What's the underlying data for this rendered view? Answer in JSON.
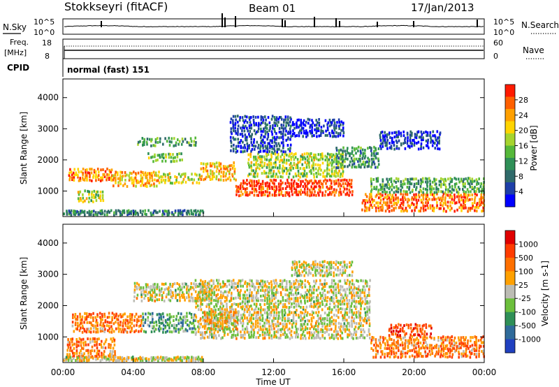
{
  "header": {
    "station": "Stokkseyri (fitACF)",
    "beam": "Beam 01",
    "date": "17/Jan/2013"
  },
  "noise_panel": {
    "left_label": "N.Sky",
    "right_label": "N.Search",
    "left_ticks": [
      "10^5",
      "10^0"
    ],
    "right_ticks": [
      "10^5",
      "10^0"
    ]
  },
  "freq_panel": {
    "left_label_1": "Freq.",
    "left_label_2": "[MHz]",
    "right_label": "Nave",
    "left_ticks": [
      "18",
      "8"
    ],
    "right_ticks": [
      "60",
      "0"
    ]
  },
  "cpid": {
    "label": "CPID",
    "value": "normal (fast) 151"
  },
  "chart_data": [
    {
      "type": "heatmap",
      "title": "",
      "xlabel": "",
      "ylabel": "Slant Range [km]",
      "xlim": [
        "00:00",
        "24:00"
      ],
      "ylim": [
        180,
        4600
      ],
      "yticks": [
        1000,
        2000,
        3000,
        4000
      ],
      "grid": false,
      "colorbar": {
        "label": "Power [dB]",
        "ticks": [
          "28",
          "24",
          "20",
          "16",
          "12",
          "8",
          "4"
        ],
        "range": [
          0,
          32
        ],
        "colors": [
          "#0000ff",
          "#1e3fa8",
          "#2f6a6a",
          "#2f8f57",
          "#55b83a",
          "#a6d42e",
          "#ffd400",
          "#ffa000",
          "#ff6000",
          "#ff1a00"
        ]
      },
      "regions": [
        {
          "t": [
            0.3,
            2.8
          ],
          "r": [
            1280,
            1700
          ],
          "level": 0.78
        },
        {
          "t": [
            2.8,
            5.5
          ],
          "r": [
            1100,
            1600
          ],
          "level": 0.72
        },
        {
          "t": [
            5.5,
            7.8
          ],
          "r": [
            1200,
            1550
          ],
          "level": 0.62
        },
        {
          "t": [
            0.8,
            2.3
          ],
          "r": [
            600,
            1000
          ],
          "level": 0.55
        },
        {
          "t": [
            4.2,
            7.6
          ],
          "r": [
            2400,
            2700
          ],
          "level": 0.4
        },
        {
          "t": [
            4.8,
            6.8
          ],
          "r": [
            1900,
            2200
          ],
          "level": 0.45
        },
        {
          "t": [
            7.8,
            9.8
          ],
          "r": [
            1300,
            1900
          ],
          "level": 0.72
        },
        {
          "t": [
            9.8,
            16.5
          ],
          "r": [
            800,
            1350
          ],
          "level": 0.93
        },
        {
          "t": [
            10.5,
            16.0
          ],
          "r": [
            1400,
            2200
          ],
          "level": 0.55
        },
        {
          "t": [
            15.5,
            18.0
          ],
          "r": [
            1700,
            2400
          ],
          "level": 0.35
        },
        {
          "t": [
            17.0,
            24.0
          ],
          "r": [
            300,
            900
          ],
          "level": 0.82
        },
        {
          "t": [
            17.5,
            24.0
          ],
          "r": [
            900,
            1400
          ],
          "level": 0.4
        },
        {
          "t": [
            0.0,
            8.0
          ],
          "r": [
            190,
            350
          ],
          "level": 0.3
        },
        {
          "t": [
            18.0,
            21.5
          ],
          "r": [
            2300,
            2900
          ],
          "level": 0.12
        },
        {
          "t": [
            9.5,
            13.0
          ],
          "r": [
            2200,
            3400
          ],
          "level": 0.15
        },
        {
          "t": [
            13.0,
            16.0
          ],
          "r": [
            2700,
            3300
          ],
          "level": 0.1
        }
      ]
    },
    {
      "type": "heatmap",
      "title": "",
      "xlabel": "Time UT",
      "ylabel": "Slant Range [km]",
      "xlim": [
        "00:00",
        "24:00"
      ],
      "xticks": [
        "00:00",
        "04:00",
        "08:00",
        "12:00",
        "16:00",
        "20:00",
        "00:00"
      ],
      "ylim": [
        180,
        4600
      ],
      "yticks": [
        1000,
        2000,
        3000,
        4000
      ],
      "grid": false,
      "colorbar": {
        "label": "Velocity [m s-1]",
        "ticks": [
          "1000",
          "500",
          "100",
          "25",
          "-25",
          "-100",
          "-500",
          "-1000"
        ],
        "colors": [
          "#2040c0",
          "#2f6b9a",
          "#2f8f57",
          "#6cbf3c",
          "#bcbcb4",
          "#ffa000",
          "#ff7000",
          "#ff3c00",
          "#e00000"
        ]
      },
      "regions": [
        {
          "t": [
            0.5,
            4.5
          ],
          "r": [
            1100,
            1750
          ],
          "level": 0.72
        },
        {
          "t": [
            4.5,
            7.5
          ],
          "r": [
            1100,
            1750
          ],
          "level": 0.32
        },
        {
          "t": [
            0.2,
            3.0
          ],
          "r": [
            300,
            950
          ],
          "level": 0.7
        },
        {
          "t": [
            4.0,
            8.5
          ],
          "r": [
            2100,
            2700
          ],
          "level": 0.5
        },
        {
          "t": [
            7.5,
            17.5
          ],
          "r": [
            900,
            2800
          ],
          "level": 0.5
        },
        {
          "t": [
            8.0,
            10.0
          ],
          "r": [
            1200,
            1800
          ],
          "level": 0.55
        },
        {
          "t": [
            17.5,
            24.0
          ],
          "r": [
            300,
            1000
          ],
          "level": 0.7
        },
        {
          "t": [
            18.5,
            21.0
          ],
          "r": [
            1000,
            1400
          ],
          "level": 0.85
        },
        {
          "t": [
            0.0,
            8.0
          ],
          "r": [
            190,
            330
          ],
          "level": 0.5
        },
        {
          "t": [
            13.0,
            16.5
          ],
          "r": [
            2900,
            3400
          ],
          "level": 0.5
        }
      ]
    }
  ]
}
